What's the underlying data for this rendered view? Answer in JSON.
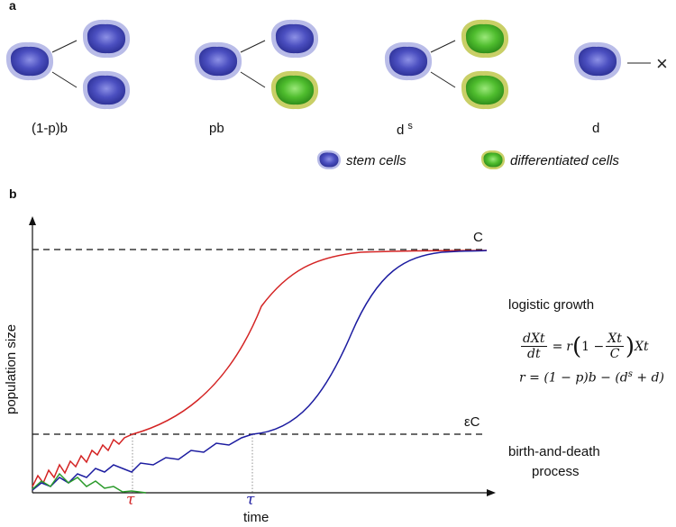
{
  "panel_a": {
    "label": "a",
    "divisions": [
      {
        "label_main": "(1-p)b",
        "label_sup": ""
      },
      {
        "label_main": "pb",
        "label_sup": ""
      },
      {
        "label_main": "d",
        "label_sup": "s"
      },
      {
        "label_main": "d",
        "label_sup": ""
      }
    ],
    "death_symbol": "×",
    "legend": {
      "stem": "stem cells",
      "differentiated": "differentiated cells"
    },
    "colors": {
      "stem_fill": "#4b4fc0",
      "stem_halo": "#b9bce8",
      "diff_fill": "#5cc63a",
      "diff_halo": "#c9cf67"
    }
  },
  "panel_b": {
    "label": "b",
    "ylabel": "population size",
    "xlabel": "time",
    "capacity_label": "C",
    "threshold_label": "εC",
    "tau_label": "τ",
    "logistic": {
      "title": "logistic growth",
      "eq_lhs_num": "dXt",
      "eq_lhs_den": "dt",
      "eq_r": "r",
      "eq_one_minus": "1 −",
      "eq_inner_num": "Xt",
      "eq_inner_den": "C",
      "eq_tail": "Xt",
      "r_def_lhs": "r = (1 − p)b − (d",
      "r_def_sup": "s",
      "r_def_tail": " + d)"
    },
    "bd_line1": "birth-and-death",
    "bd_line2": "process",
    "colors": {
      "red": "#d42424",
      "blue": "#1c1ca0",
      "green": "#2a9a2a"
    }
  }
}
